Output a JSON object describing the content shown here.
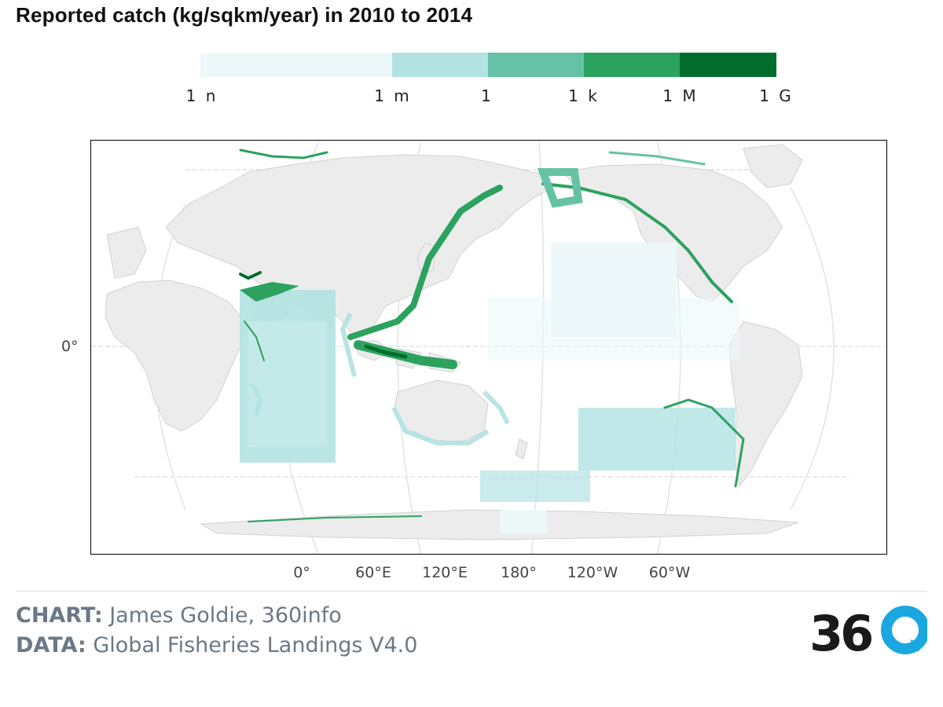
{
  "title": "Reported catch (kg/sqkm/year) in 2010 to 2014",
  "legend": {
    "segments": [
      {
        "from": "1 n",
        "to": "1 m",
        "color": "#edf8fa"
      },
      {
        "from": "1 m",
        "to": "1",
        "color": "#b2e2e2"
      },
      {
        "from": "1",
        "to": "1 k",
        "color": "#66c2a4"
      },
      {
        "from": "1 k",
        "to": "1 M",
        "color": "#2ca25f"
      },
      {
        "from": "1 M",
        "to": "1 G",
        "color": "#006d2c"
      }
    ],
    "ticks": [
      "1 n",
      "1 m",
      "1",
      "1 k",
      "1 M",
      "1 G"
    ]
  },
  "map": {
    "lat_label": "0°",
    "lon_labels": [
      "0°",
      "60°E",
      "120°E",
      "180°",
      "120°W",
      "60°W"
    ]
  },
  "credits": {
    "chart_label": "CHART:",
    "chart_value": "James Goldie, 360info",
    "data_label": "DATA:",
    "data_value": "Global Fisheries Landings V4.0"
  },
  "logo": {
    "text": "360"
  },
  "colors": {
    "land": "#ececec",
    "land_border": "#d2d2d2",
    "ocean": "#ffffff",
    "accent_blue": "#1aa7e0"
  }
}
